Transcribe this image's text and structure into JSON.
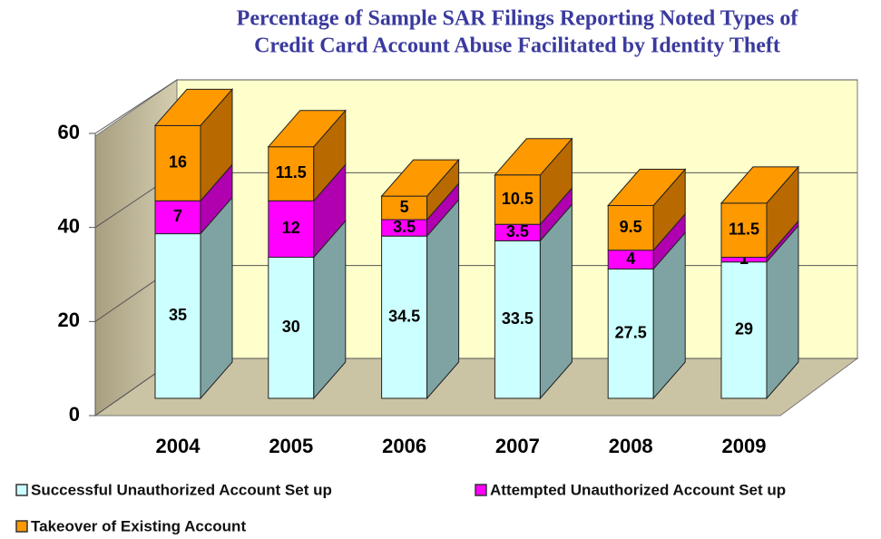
{
  "chart_data": {
    "type": "bar3d_stacked",
    "title": [
      "Percentage of Sample SAR Filings Reporting Noted Types of",
      "Credit Card Account Abuse Facilitated by Identity Theft"
    ],
    "categories": [
      "2004",
      "2005",
      "2006",
      "2007",
      "2008",
      "2009"
    ],
    "series": [
      {
        "name": "Successful Unauthorized Account Set up",
        "color": "#ccffff",
        "side_color": "#7fa3a3",
        "values": [
          35,
          30,
          34.5,
          33.5,
          27.5,
          29
        ]
      },
      {
        "name": "Attempted Unauthorized Account Set up",
        "color": "#ff00ff",
        "side_color": "#b000b0",
        "values": [
          7,
          12,
          3.5,
          3.5,
          4,
          1
        ]
      },
      {
        "name": "Takeover of Existing Account",
        "color": "#ff9900",
        "side_color": "#b86a00",
        "values": [
          16,
          11.5,
          5,
          10.5,
          9.5,
          11.5
        ]
      }
    ],
    "ylim": [
      0,
      60
    ],
    "yticks": [
      0,
      20,
      40,
      60
    ],
    "grid": true,
    "legend": "bottom"
  }
}
